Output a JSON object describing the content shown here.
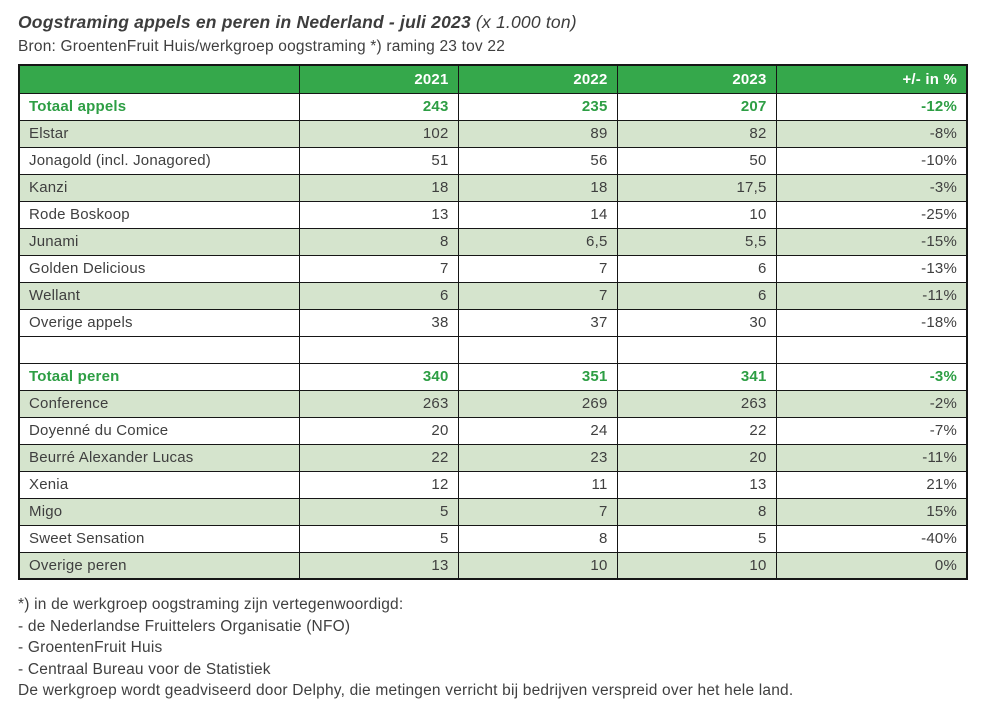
{
  "header": {
    "title_bold": "Oogstraming appels en peren in Nederland - juli 2023",
    "title_suffix": " (x 1.000 ton)",
    "source_line": "Bron: GroentenFruit Huis/werkgroep oogstraming *) raming 23 tov 22"
  },
  "colors": {
    "header_green": "#35a84b",
    "row_light_green": "#d5e4cd",
    "total_text_green": "#2d9e44",
    "body_text": "#3f3f3f",
    "border": "#161616"
  },
  "chart_data": {
    "type": "table",
    "title": "Oogstraming appels en peren in Nederland - juli 2023",
    "unit": "x 1.000 ton",
    "columns": [
      "",
      "2021",
      "2022",
      "2023",
      "+/- in %"
    ],
    "rows": [
      {
        "label": "Totaal appels",
        "values": [
          "243",
          "235",
          "207",
          "-12%"
        ],
        "kind": "total"
      },
      {
        "label": "Elstar",
        "values": [
          "102",
          "89",
          "82",
          "-8%"
        ],
        "kind": "shaded"
      },
      {
        "label": "Jonagold (incl. Jonagored)",
        "values": [
          "51",
          "56",
          "50",
          "-10%"
        ],
        "kind": "plain"
      },
      {
        "label": "Kanzi",
        "values": [
          "18",
          "18",
          "17,5",
          "-3%"
        ],
        "kind": "shaded"
      },
      {
        "label": "Rode Boskoop",
        "values": [
          "13",
          "14",
          "10",
          "-25%"
        ],
        "kind": "plain"
      },
      {
        "label": "Junami",
        "values": [
          "8",
          "6,5",
          "5,5",
          "-15%"
        ],
        "kind": "shaded"
      },
      {
        "label": "Golden Delicious",
        "values": [
          "7",
          "7",
          "6",
          "-13%"
        ],
        "kind": "plain"
      },
      {
        "label": "Wellant",
        "values": [
          "6",
          "7",
          "6",
          "-11%"
        ],
        "kind": "shaded"
      },
      {
        "label": "Overige appels",
        "values": [
          "38",
          "37",
          "30",
          "-18%"
        ],
        "kind": "plain"
      },
      {
        "label": "",
        "values": [
          "",
          "",
          "",
          ""
        ],
        "kind": "spacer"
      },
      {
        "label": "Totaal peren",
        "values": [
          "340",
          "351",
          "341",
          "-3%"
        ],
        "kind": "total"
      },
      {
        "label": "Conference",
        "values": [
          "263",
          "269",
          "263",
          "-2%"
        ],
        "kind": "shaded"
      },
      {
        "label": "Doyenné du Comice",
        "values": [
          "20",
          "24",
          "22",
          "-7%"
        ],
        "kind": "plain"
      },
      {
        "label": "Beurré Alexander Lucas",
        "values": [
          "22",
          "23",
          "20",
          "-11%"
        ],
        "kind": "shaded"
      },
      {
        "label": "Xenia",
        "values": [
          "12",
          "11",
          "13",
          "21%"
        ],
        "kind": "plain"
      },
      {
        "label": "Migo",
        "values": [
          "5",
          "7",
          "8",
          "15%"
        ],
        "kind": "shaded"
      },
      {
        "label": "Sweet Sensation",
        "values": [
          "5",
          "8",
          "5",
          "-40%"
        ],
        "kind": "plain"
      },
      {
        "label": "Overige peren",
        "values": [
          "13",
          "10",
          "10",
          "0%"
        ],
        "kind": "shaded"
      }
    ]
  },
  "footnotes": [
    "*) in de werkgroep oogstraming zijn vertegenwoordigd:",
    "- de Nederlandse Fruittelers Organisatie (NFO)",
    "- GroentenFruit Huis",
    "- Centraal Bureau voor de Statistiek",
    "De werkgroep wordt geadviseerd door Delphy, die metingen verricht bij bedrijven verspreid over het hele land."
  ]
}
